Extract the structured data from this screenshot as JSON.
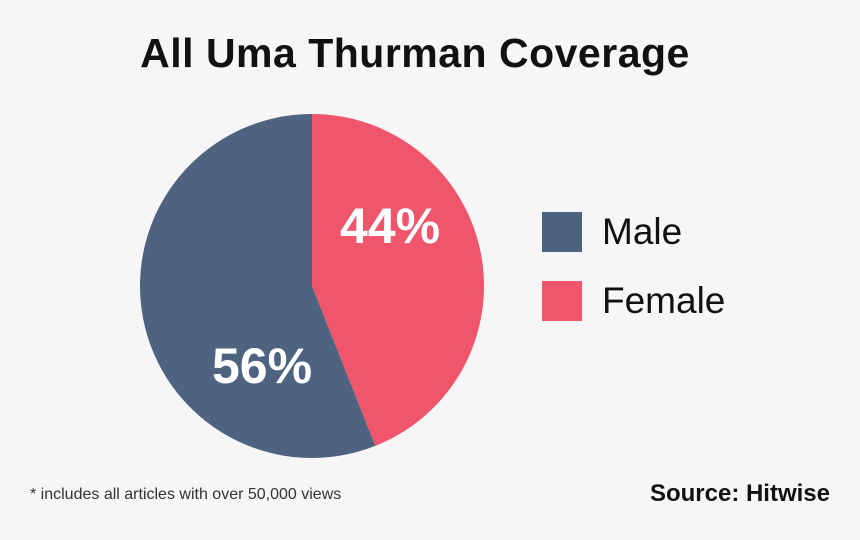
{
  "chart_data": {
    "type": "pie",
    "title": "All Uma Thurman Coverage",
    "slices": [
      {
        "name": "Male",
        "value": 56,
        "label": "56%",
        "color": "#4e6380"
      },
      {
        "name": "Female",
        "value": 44,
        "label": "44%",
        "color": "#f0566b"
      }
    ],
    "legend_placement": "right",
    "footnote": "* includes all articles with over 50,000 views",
    "source": "Source: Hitwise"
  }
}
